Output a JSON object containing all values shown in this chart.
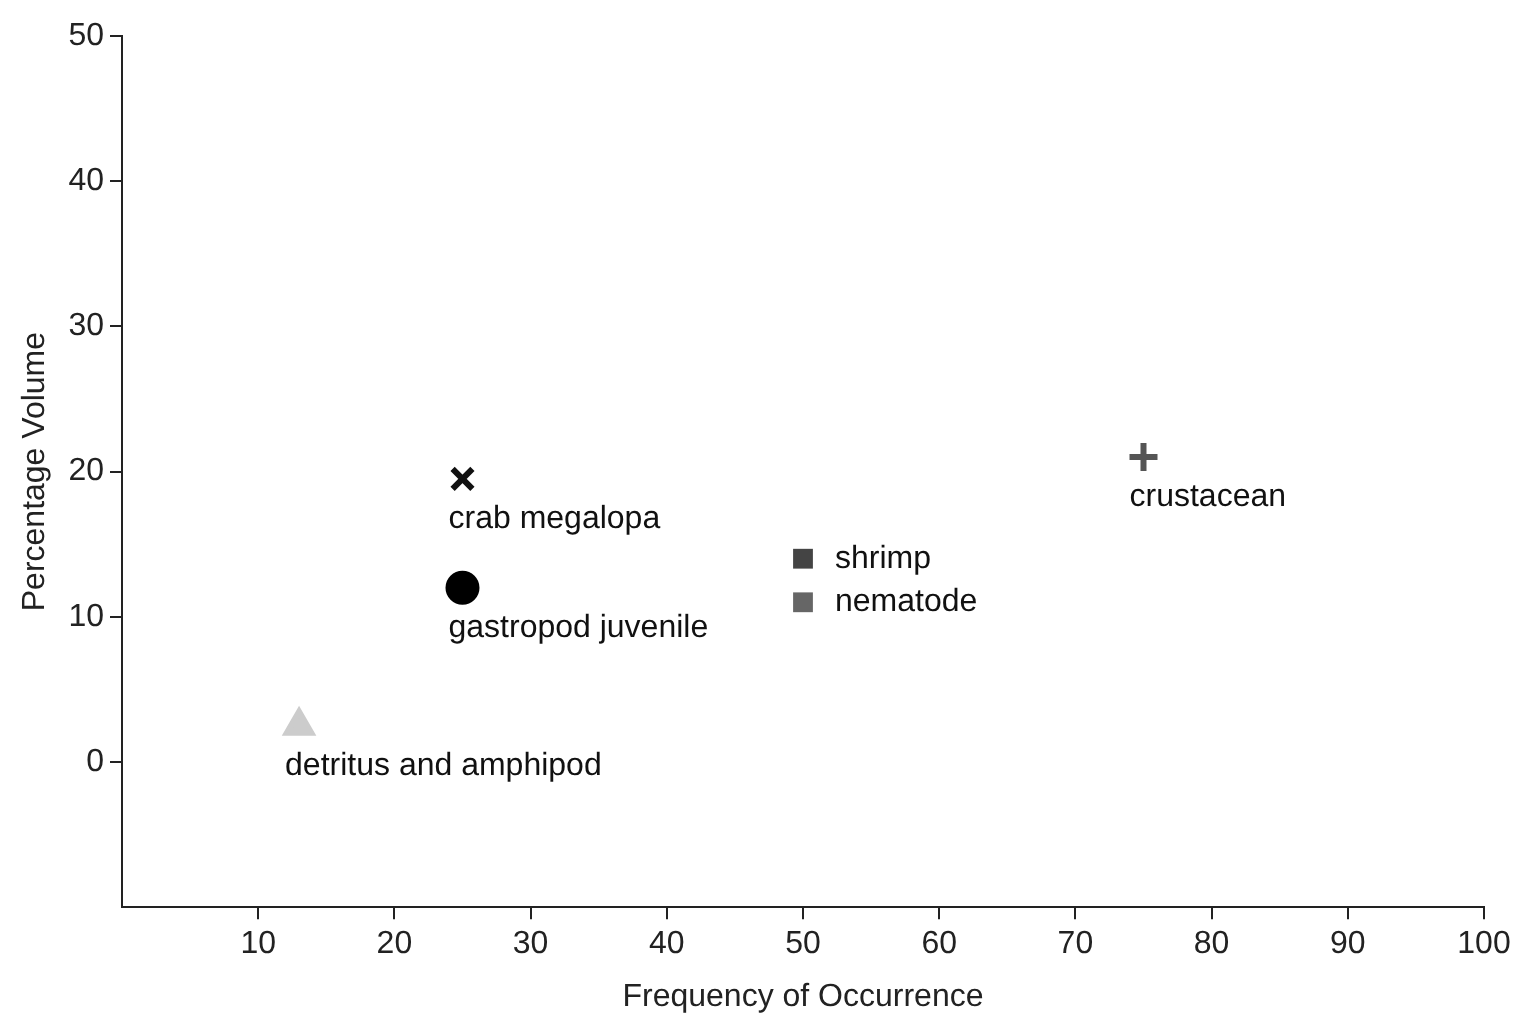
{
  "chart_data": {
    "type": "scatter",
    "xlabel": "Frequency of Occurrence",
    "ylabel": "Percentage Volume",
    "xlim": [
      0,
      100
    ],
    "ylim": [
      -10,
      50
    ],
    "xticks": [
      10,
      20,
      30,
      40,
      50,
      60,
      70,
      80,
      90,
      100
    ],
    "yticks": [
      0,
      10,
      20,
      30,
      40,
      50
    ],
    "grid": false,
    "legend": false,
    "series": [
      {
        "name": "crab megalopa",
        "color": "#111111",
        "marker": "x",
        "x": [
          25
        ],
        "values": [
          19.5
        ]
      },
      {
        "name": "crustacean",
        "color": "#555555",
        "marker": "cross",
        "x": [
          75
        ],
        "values": [
          21
        ]
      },
      {
        "name": "shrimp",
        "color": "#444444",
        "marker": "square",
        "x": [
          50
        ],
        "values": [
          14
        ]
      },
      {
        "name": "nematode",
        "color": "#666666",
        "marker": "square",
        "x": [
          50
        ],
        "values": [
          11
        ]
      },
      {
        "name": "gastropod juvenile",
        "color": "#000000",
        "marker": "circle",
        "x": [
          25
        ],
        "values": [
          12
        ]
      },
      {
        "name": "detritus and amphipod",
        "color": "#cccccc",
        "marker": "triangle",
        "x": [
          13
        ],
        "values": [
          2.5
        ]
      }
    ]
  }
}
